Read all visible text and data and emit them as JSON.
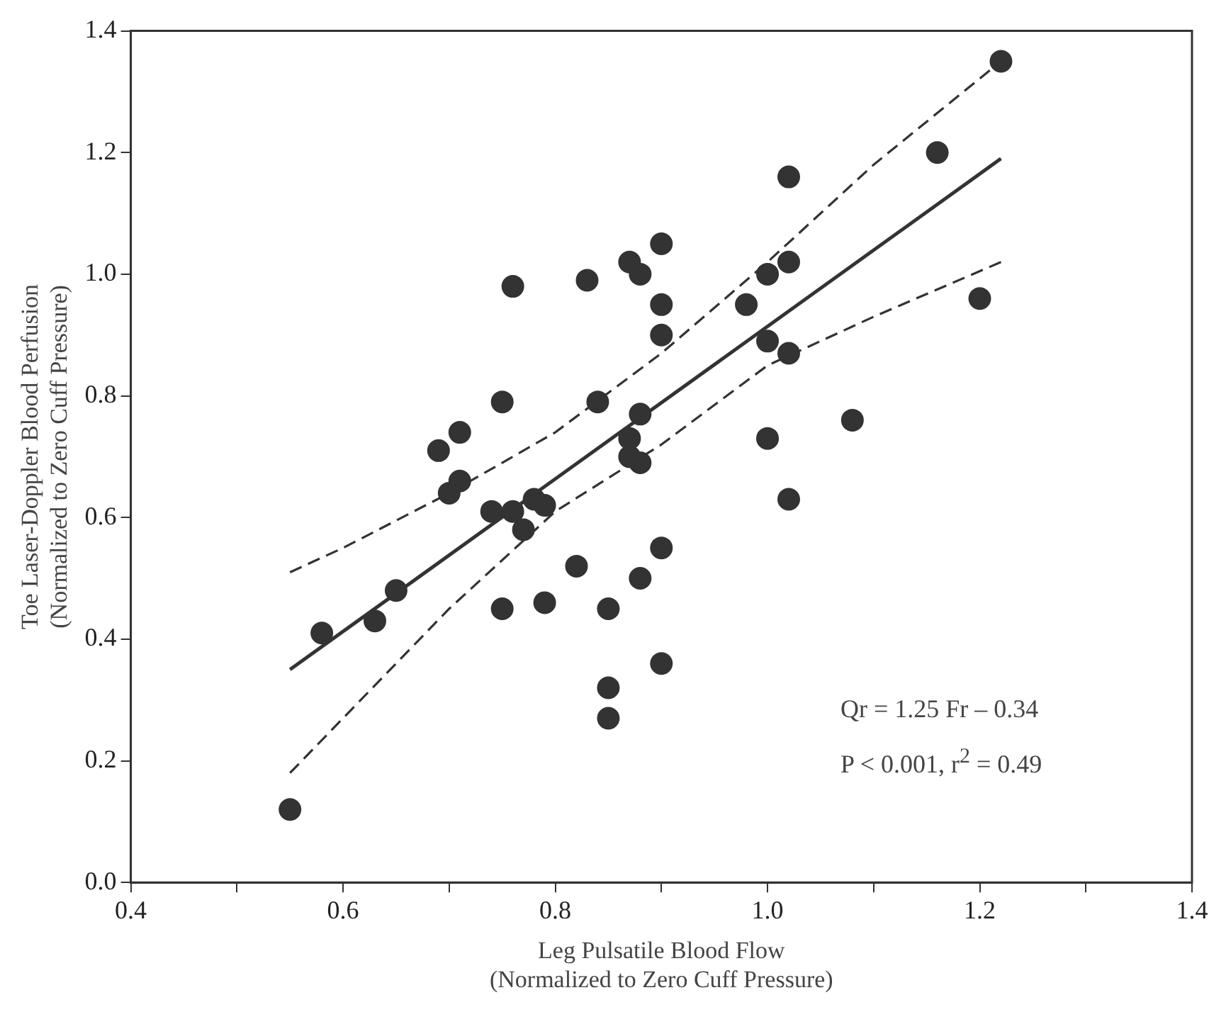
{
  "chart_data": {
    "type": "scatter",
    "xlabel": "Leg Pulsatile Blood Flow\n(Normalized to Zero Cuff Pressure)",
    "ylabel": "Toe Laser-Doppler Blood Perfusion\n(Normalized to Zero Cuff Pressure)",
    "xlim": [
      0.4,
      1.4
    ],
    "ylim": [
      0,
      1.4
    ],
    "xticks": [
      0.4,
      {
        "value": 0.5,
        "label": null
      },
      0.6,
      {
        "value": 0.7,
        "label": null
      },
      0.8,
      {
        "value": 0.9,
        "label": null
      },
      {
        "value": 1,
        "label": "1.0"
      },
      {
        "value": 1.1,
        "label": null
      },
      1.2,
      {
        "value": 1.3,
        "label": null
      },
      1.4
    ],
    "yticks": [
      {
        "value": 0,
        "label": "0.0"
      },
      0.2,
      0.4,
      0.6,
      0.8,
      {
        "value": 1,
        "label": "1.0"
      },
      1.2,
      1.4
    ],
    "grid": false,
    "legend": false,
    "marker": "circle",
    "annotations": [
      "Qr = 1.25 Fr – 0.34",
      "P < 0.001, r$^{2}$ = 0.49"
    ],
    "series": [
      {
        "color": "#333333",
        "x": [
          0.55,
          0.58,
          0.63,
          0.65,
          0.69,
          0.71,
          0.7,
          0.71,
          0.75,
          0.76,
          0.74,
          0.76,
          0.77,
          0.78,
          0.79,
          0.75,
          0.79,
          0.82,
          0.83,
          0.84,
          0.85,
          0.85,
          0.85,
          0.87,
          0.88,
          0.87,
          0.87,
          0.88,
          0.88,
          0.88,
          0.9,
          0.9,
          0.9,
          0.9,
          0.9,
          0.98,
          1.0,
          1.02,
          1.02,
          1.0,
          1.02,
          1.0,
          1.02,
          1.08,
          1.16,
          1.2,
          1.22
        ],
        "values": [
          0.12,
          0.41,
          0.43,
          0.48,
          0.71,
          0.74,
          0.64,
          0.66,
          0.79,
          0.98,
          0.61,
          0.61,
          0.58,
          0.63,
          0.62,
          0.45,
          0.46,
          0.52,
          0.99,
          0.79,
          0.45,
          0.32,
          0.27,
          1.02,
          1.0,
          0.73,
          0.7,
          0.69,
          0.77,
          0.5,
          1.05,
          0.95,
          0.9,
          0.55,
          0.36,
          0.95,
          1.0,
          1.02,
          1.16,
          0.89,
          0.87,
          0.73,
          0.63,
          0.76,
          1.2,
          0.96,
          1.35
        ]
      },
      {
        "type": "line",
        "color": "#333333",
        "line_style": "solid",
        "marker": "none",
        "x": [
          0.55,
          1.22
        ],
        "values": [
          0.35,
          1.19
        ]
      },
      {
        "type": "line",
        "color": "#333333",
        "line_style": "dashed",
        "marker": "none",
        "x": [
          0.55,
          0.6,
          0.7,
          0.8,
          0.9,
          1.0,
          1.1,
          1.22
        ],
        "values": [
          0.51,
          0.55,
          0.64,
          0.74,
          0.87,
          1.02,
          1.18,
          1.35
        ]
      },
      {
        "type": "line",
        "color": "#333333",
        "line_style": "dashed",
        "marker": "none",
        "x": [
          0.55,
          0.6,
          0.7,
          0.8,
          0.9,
          1.0,
          1.1,
          1.22
        ],
        "values": [
          0.18,
          0.27,
          0.45,
          0.61,
          0.72,
          0.85,
          0.93,
          1.02
        ]
      }
    ]
  }
}
